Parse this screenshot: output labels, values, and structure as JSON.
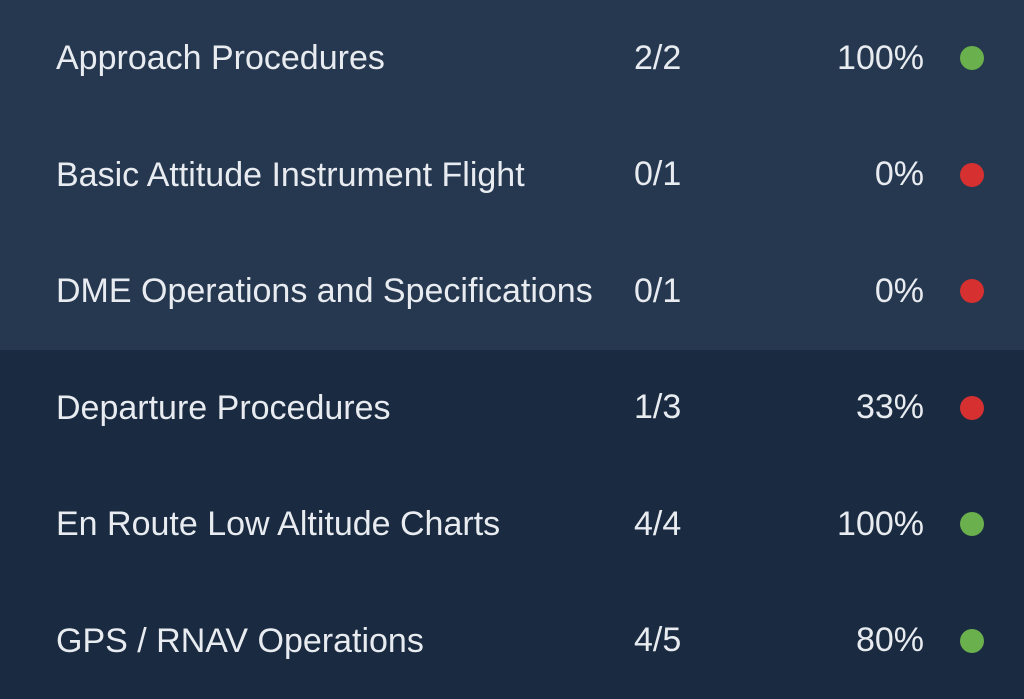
{
  "colors": {
    "row_light": "#263850",
    "row_dark": "#1a2a40",
    "text": "#e8ecf0",
    "dot_green": "#6ab04c",
    "dot_red": "#d63031"
  },
  "rows": [
    {
      "name": "Approach Procedures",
      "score": "2/2",
      "percent": "100%",
      "dot_color": "#6ab04c",
      "shade": "light"
    },
    {
      "name": "Basic Attitude Instrument Flight",
      "score": "0/1",
      "percent": "0%",
      "dot_color": "#d63031",
      "shade": "light"
    },
    {
      "name": "DME Operations and Specifications",
      "score": "0/1",
      "percent": "0%",
      "dot_color": "#d63031",
      "shade": "light"
    },
    {
      "name": "Departure Procedures",
      "score": "1/3",
      "percent": "33%",
      "dot_color": "#d63031",
      "shade": "dark"
    },
    {
      "name": "En Route Low Altitude Charts",
      "score": "4/4",
      "percent": "100%",
      "dot_color": "#6ab04c",
      "shade": "dark"
    },
    {
      "name": "GPS / RNAV Operations",
      "score": "4/5",
      "percent": "80%",
      "dot_color": "#6ab04c",
      "shade": "dark"
    }
  ]
}
